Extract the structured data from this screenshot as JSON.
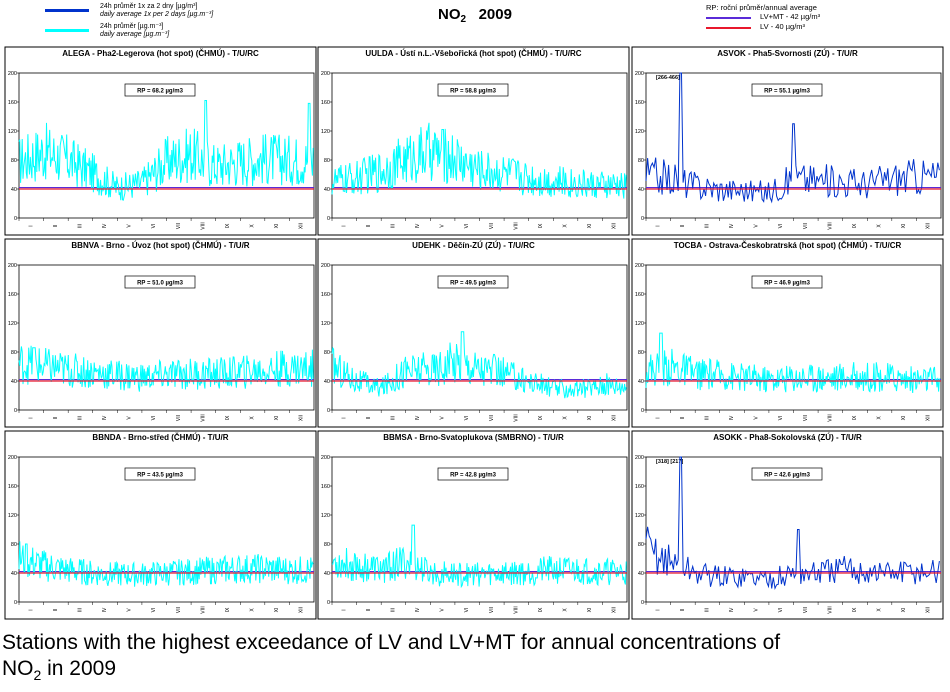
{
  "header": {
    "legend_left": {
      "blue_line_1": "24h průměr 1x za 2 dny [µg/m³]",
      "blue_line_2": "daily average 1x per 2 days [µg.m⁻³]",
      "cyan_line_1": "24h průměr [µg.m⁻³]",
      "cyan_line_2": "daily average [µg.m⁻³]"
    },
    "title_chem": "NO",
    "title_sub": "2",
    "title_year": "2009",
    "legend_right": {
      "heading": "RP: roční průměr/annual average",
      "lvmt": "LV+MT - 42 µg/m³",
      "lv": "LV - 40 µg/m³"
    }
  },
  "colors": {
    "cyan": "#00ffff",
    "blue": "#0033cc",
    "lvmt": "#5a2bd8",
    "lv": "#e8182c",
    "frame": "#000000"
  },
  "caption": {
    "line1": "Stations with the highest exceedance of LV and LV+MT for annual concentrations of",
    "line2_pre": "NO",
    "line2_sub": "2",
    "line2_post": " in 2009"
  },
  "chart_data": [
    {
      "type": "line",
      "title": "ALEGA - Pha2-Legerova (hot spot) (ČHMÚ) - T/U/RC",
      "rp": "RP = 68.2 µg/m3",
      "ylim": [
        0,
        200
      ],
      "yticks": [
        0,
        40,
        80,
        120,
        160,
        200
      ],
      "months": [
        "I",
        "II",
        "III",
        "IV",
        "V",
        "VI",
        "VII",
        "VIII",
        "IX",
        "X",
        "XI",
        "XII"
      ],
      "series_color": "cyan",
      "lv": 40,
      "lvmt": 42,
      "monthly_values": [
        78,
        92,
        80,
        62,
        42,
        48,
        78,
        88,
        72,
        78,
        82,
        80
      ],
      "peaks": [
        [
          7.6,
          162
        ],
        [
          11.8,
          158
        ]
      ],
      "annotation": ""
    },
    {
      "type": "line",
      "title": "UULDA - Ústí n.L.-Všebořická (hot spot) (ČHMÚ) - T/U/RC",
      "rp": "RP = 58.8 µg/m3",
      "ylim": [
        0,
        200
      ],
      "yticks": [
        0,
        40,
        80,
        120,
        160,
        200
      ],
      "months": [
        "I",
        "II",
        "III",
        "IV",
        "V",
        "VI",
        "VII",
        "VIII",
        "IX",
        "X",
        "XI",
        "XII"
      ],
      "series_color": "cyan",
      "lv": 40,
      "lvmt": 42,
      "monthly_values": [
        50,
        55,
        65,
        80,
        92,
        82,
        66,
        62,
        55,
        50,
        48,
        44
      ],
      "peaks": [
        [
          4.5,
          122
        ]
      ],
      "annotation": ""
    },
    {
      "type": "line",
      "title": "ASVOK - Pha5-Svornosti (ZÚ) - T/U/R",
      "rp": "RP = 55.1 µg/m3",
      "ylim": [
        0,
        200
      ],
      "yticks": [
        0,
        40,
        80,
        120,
        160,
        200
      ],
      "months": [
        "I",
        "II",
        "III",
        "IV",
        "V",
        "VI",
        "VII",
        "VIII",
        "IX",
        "X",
        "XI",
        "XII"
      ],
      "series_color": "blue",
      "lv": 40,
      "lvmt": 42,
      "monthly_values": [
        60,
        55,
        45,
        40,
        38,
        35,
        55,
        52,
        50,
        48,
        55,
        58
      ],
      "peaks": [
        [
          1.4,
          200
        ],
        [
          6.0,
          130
        ]
      ],
      "annotation": "[266-466]"
    },
    {
      "type": "line",
      "title": "BBNVA - Brno - Úvoz (hot spot) (ČHMÚ) - T/U/R",
      "rp": "RP = 51.0 µg/m3",
      "ylim": [
        0,
        200
      ],
      "yticks": [
        0,
        40,
        80,
        120,
        160,
        200
      ],
      "months": [
        "I",
        "II",
        "III",
        "IV",
        "V",
        "VI",
        "VII",
        "VIII",
        "IX",
        "X",
        "XI",
        "XII"
      ],
      "series_color": "cyan",
      "lv": 40,
      "lvmt": 42,
      "monthly_values": [
        65,
        60,
        55,
        52,
        48,
        45,
        48,
        50,
        50,
        52,
        55,
        58
      ],
      "peaks": [
        [
          0.6,
          86
        ]
      ],
      "annotation": ""
    },
    {
      "type": "line",
      "title": "UDEHK - Děčín-ZÚ (ZÚ) - T/U/RC",
      "rp": "RP = 49.5 µg/m3",
      "ylim": [
        0,
        200
      ],
      "yticks": [
        0,
        40,
        80,
        120,
        160,
        200
      ],
      "months": [
        "I",
        "II",
        "III",
        "IV",
        "V",
        "VI",
        "VII",
        "VIII",
        "IX",
        "X",
        "XI",
        "XII"
      ],
      "series_color": "cyan",
      "lv": 40,
      "lvmt": 42,
      "monthly_values": [
        62,
        40,
        30,
        55,
        55,
        68,
        58,
        50,
        40,
        30,
        28,
        35
      ],
      "peaks": [
        [
          5.3,
          108
        ]
      ],
      "annotation": ""
    },
    {
      "type": "line",
      "title": "TOCBA - Ostrava-Českobratrská (hot spot) (ČHMÚ) - T/U/CR",
      "rp": "RP = 46.9 µg/m3",
      "ylim": [
        0,
        200
      ],
      "yticks": [
        0,
        40,
        80,
        120,
        160,
        200
      ],
      "months": [
        "I",
        "II",
        "III",
        "IV",
        "V",
        "VI",
        "VII",
        "VIII",
        "IX",
        "X",
        "XI",
        "XII"
      ],
      "series_color": "cyan",
      "lv": 40,
      "lvmt": 42,
      "monthly_values": [
        55,
        60,
        50,
        48,
        45,
        42,
        45,
        45,
        45,
        46,
        45,
        42
      ],
      "peaks": [
        [
          0.6,
          106
        ]
      ],
      "annotation": ""
    },
    {
      "type": "line",
      "title": "BBNDA - Brno-střed (ČHMÚ) - T/U/R",
      "rp": "RP = 43.5 µg/m3",
      "ylim": [
        0,
        200
      ],
      "yticks": [
        0,
        40,
        80,
        120,
        160,
        200
      ],
      "months": [
        "I",
        "II",
        "III",
        "IV",
        "V",
        "VI",
        "VII",
        "VIII",
        "IX",
        "X",
        "XI",
        "XII"
      ],
      "series_color": "cyan",
      "lv": 40,
      "lvmt": 42,
      "monthly_values": [
        60,
        50,
        44,
        40,
        38,
        38,
        40,
        42,
        44,
        46,
        46,
        44
      ],
      "peaks": [
        [
          0.3,
          80
        ]
      ],
      "annotation": ""
    },
    {
      "type": "line",
      "title": "BBMSA - Brno-Svatoplukova (SMBRNO) - T/U/R",
      "rp": "RP = 42.8 µg/m3",
      "ylim": [
        0,
        200
      ],
      "yticks": [
        0,
        40,
        80,
        120,
        160,
        200
      ],
      "months": [
        "I",
        "II",
        "III",
        "IV",
        "V",
        "VI",
        "VII",
        "VIII",
        "IX",
        "X",
        "XI",
        "XII"
      ],
      "series_color": "cyan",
      "lv": 40,
      "lvmt": 42,
      "monthly_values": [
        55,
        50,
        45,
        55,
        40,
        38,
        38,
        40,
        42,
        44,
        44,
        42
      ],
      "peaks": [
        [
          3.3,
          106
        ]
      ],
      "annotation": ""
    },
    {
      "type": "line",
      "title": "ASOKK - Pha8-Sokolovská (ZÚ) - T/U/R",
      "rp": "RP = 42.6 µg/m3",
      "ylim": [
        0,
        200
      ],
      "yticks": [
        0,
        40,
        80,
        120,
        160,
        200
      ],
      "months": [
        "I",
        "II",
        "III",
        "IV",
        "V",
        "VI",
        "VII",
        "VIII",
        "IX",
        "X",
        "XI",
        "XII"
      ],
      "series_color": "blue",
      "lv": 40,
      "lvmt": 42,
      "monthly_values": [
        75,
        55,
        40,
        35,
        35,
        32,
        38,
        40,
        45,
        42,
        40,
        42
      ],
      "peaks": [
        [
          1.4,
          200
        ],
        [
          6.2,
          100
        ]
      ],
      "annotation": "[318] [217]"
    }
  ]
}
